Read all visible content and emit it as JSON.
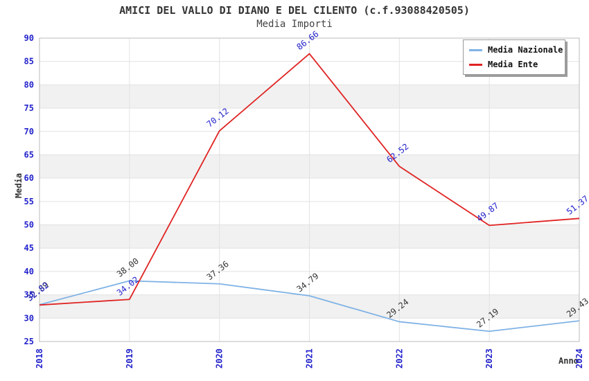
{
  "header": {
    "title": "AMICI DEL VALLO DI DIANO E DEL CILENTO (c.f.93088420505)",
    "subtitle": "Media Importi"
  },
  "chart_data": {
    "type": "line",
    "title": "AMICI DEL VALLO DI DIANO E DEL CILENTO (c.f.93088420505)",
    "subtitle": "Media Importi",
    "xlabel": "Anno",
    "ylabel": "Media",
    "x": [
      "2018",
      "2019",
      "2020",
      "2021",
      "2022",
      "2023",
      "2024"
    ],
    "series": [
      {
        "name": "Media Nazionale",
        "color": "#7FB2E5",
        "label_color": "#333333",
        "values": [
          32.89,
          38.0,
          37.36,
          34.79,
          29.24,
          27.19,
          29.43
        ]
      },
      {
        "name": "Media Ente",
        "color": "#E02222",
        "label_color": "#2222CC",
        "values": [
          32.82,
          34.02,
          70.12,
          86.66,
          62.52,
          49.87,
          51.37
        ]
      }
    ],
    "ylim": [
      25,
      90
    ],
    "ytick_step": 5,
    "yticks": [
      25,
      30,
      35,
      40,
      45,
      50,
      55,
      60,
      65,
      70,
      75,
      80,
      85,
      90
    ],
    "grid": true,
    "legend_position": "top-right",
    "colors": {
      "tick_label": "#2222CC",
      "grid_line": "#E2E2E2",
      "band_fill": "#F1F1F1",
      "plot_border": "#BBBBBB",
      "title_text": "#333333"
    },
    "band_lower_edges": [
      30,
      45,
      60,
      75
    ],
    "value_label_decimals": 2
  }
}
